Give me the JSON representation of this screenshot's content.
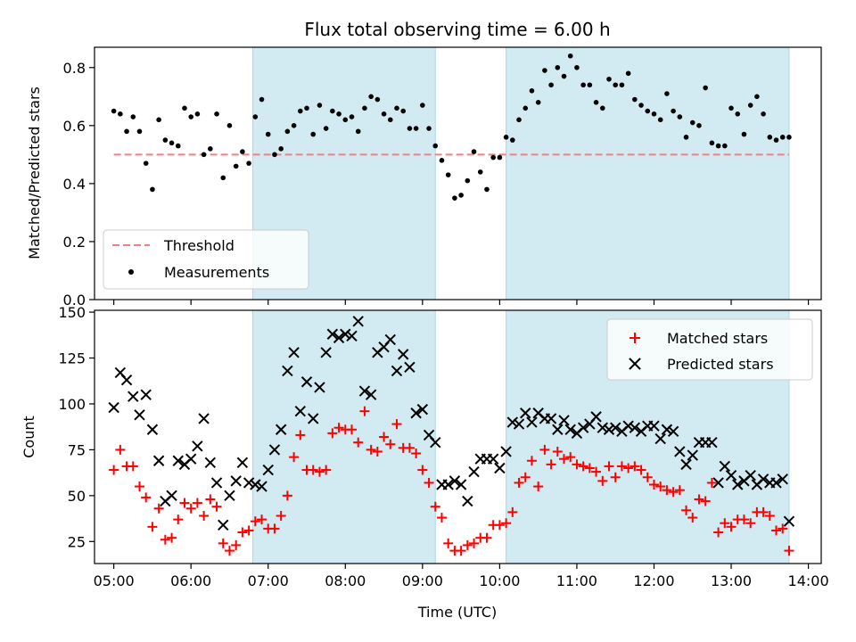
{
  "chart_data": [
    {
      "type": "scatter",
      "title": "Flux total observing time = 6.00 h",
      "xlabel": "",
      "ylabel": "Matched/Predicted stars",
      "x_tick_labels": [
        "05:00",
        "06:00",
        "07:00",
        "08:00",
        "09:00",
        "10:00",
        "11:00",
        "12:00",
        "13:00",
        "14:00"
      ],
      "xlim": [
        "04:45",
        "14:10"
      ],
      "ylim": [
        0,
        0.87
      ],
      "y_ticks": [
        0.0,
        0.2,
        0.4,
        0.6,
        0.8
      ],
      "y_tick_labels": [
        "0.0",
        "0.2",
        "0.4",
        "0.6",
        "0.8"
      ],
      "shaded_intervals": [
        [
          "06:48",
          "09:10"
        ],
        [
          "10:05",
          "13:45"
        ]
      ],
      "shade_color": "#add8e6",
      "legend_position": "lower left",
      "reference_lines": [
        {
          "name": "Threshold",
          "y": 0.5,
          "x_range": [
            "05:00",
            "13:45"
          ],
          "style": "dashed",
          "color": "#f08080"
        }
      ],
      "series": [
        {
          "name": "Measurements",
          "marker": "dot",
          "color": "#000000",
          "x": [
            "05:00",
            "05:05",
            "05:10",
            "05:15",
            "05:20",
            "05:25",
            "05:30",
            "05:35",
            "05:40",
            "05:45",
            "05:50",
            "05:55",
            "06:00",
            "06:05",
            "06:10",
            "06:15",
            "06:20",
            "06:25",
            "06:30",
            "06:35",
            "06:40",
            "06:45",
            "06:50",
            "06:55",
            "07:00",
            "07:05",
            "07:10",
            "07:15",
            "07:20",
            "07:25",
            "07:30",
            "07:35",
            "07:40",
            "07:45",
            "07:50",
            "07:55",
            "08:00",
            "08:05",
            "08:10",
            "08:15",
            "08:20",
            "08:25",
            "08:30",
            "08:35",
            "08:40",
            "08:45",
            "08:50",
            "08:55",
            "09:00",
            "09:05",
            "09:10",
            "09:15",
            "09:20",
            "09:25",
            "09:30",
            "09:35",
            "09:40",
            "09:45",
            "09:50",
            "09:55",
            "10:00",
            "10:05",
            "10:10",
            "10:15",
            "10:20",
            "10:25",
            "10:30",
            "10:35",
            "10:40",
            "10:45",
            "10:50",
            "10:55",
            "11:00",
            "11:05",
            "11:10",
            "11:15",
            "11:20",
            "11:25",
            "11:30",
            "11:35",
            "11:40",
            "11:45",
            "11:50",
            "11:55",
            "12:00",
            "12:05",
            "12:10",
            "12:15",
            "12:20",
            "12:25",
            "12:30",
            "12:35",
            "12:40",
            "12:45",
            "12:50",
            "12:55",
            "13:00",
            "13:05",
            "13:10",
            "13:15",
            "13:20",
            "13:25",
            "13:30",
            "13:35",
            "13:40",
            "13:45"
          ],
          "y": [
            0.65,
            0.64,
            0.58,
            0.63,
            0.58,
            0.47,
            0.38,
            0.62,
            0.55,
            0.54,
            0.53,
            0.66,
            0.63,
            0.64,
            0.5,
            0.52,
            0.64,
            0.42,
            0.6,
            0.46,
            0.51,
            0.47,
            0.63,
            0.69,
            0.57,
            0.5,
            0.52,
            0.58,
            0.6,
            0.65,
            0.66,
            0.57,
            0.67,
            0.59,
            0.65,
            0.64,
            0.62,
            0.63,
            0.58,
            0.66,
            0.7,
            0.69,
            0.64,
            0.62,
            0.66,
            0.65,
            0.59,
            0.59,
            0.67,
            0.59,
            0.53,
            0.48,
            0.43,
            0.35,
            0.36,
            0.41,
            0.51,
            0.44,
            0.38,
            0.49,
            0.49,
            0.56,
            0.55,
            0.62,
            0.66,
            0.72,
            0.68,
            0.79,
            0.74,
            0.8,
            0.77,
            0.84,
            0.8,
            0.74,
            0.74,
            0.68,
            0.66,
            0.76,
            0.74,
            0.74,
            0.78,
            0.69,
            0.67,
            0.65,
            0.64,
            0.62,
            0.71,
            0.65,
            0.63,
            0.56,
            0.61,
            0.6,
            0.73,
            0.54,
            0.53,
            0.53,
            0.66,
            0.64,
            0.57,
            0.67,
            0.7,
            0.64,
            0.56,
            0.55,
            0.56,
            0.56
          ]
        }
      ]
    },
    {
      "type": "scatter",
      "xlabel": "Time (UTC)",
      "ylabel": "Count",
      "x_tick_labels": [
        "05:00",
        "06:00",
        "07:00",
        "08:00",
        "09:00",
        "10:00",
        "11:00",
        "12:00",
        "13:00",
        "14:00"
      ],
      "xlim": [
        "04:45",
        "14:10"
      ],
      "ylim": [
        13,
        151
      ],
      "y_ticks": [
        25,
        50,
        75,
        100,
        125,
        150
      ],
      "y_tick_labels": [
        "25",
        "50",
        "75",
        "100",
        "125",
        "150"
      ],
      "shaded_intervals": [
        [
          "06:48",
          "09:10"
        ],
        [
          "10:05",
          "13:45"
        ]
      ],
      "shade_color": "#add8e6",
      "legend_position": "upper right",
      "series": [
        {
          "name": "Matched stars",
          "marker": "plus",
          "color": "#ff0000",
          "x": [
            "05:00",
            "05:05",
            "05:10",
            "05:15",
            "05:20",
            "05:25",
            "05:30",
            "05:35",
            "05:40",
            "05:45",
            "05:50",
            "05:55",
            "06:00",
            "06:05",
            "06:10",
            "06:15",
            "06:20",
            "06:25",
            "06:30",
            "06:35",
            "06:40",
            "06:45",
            "06:50",
            "06:55",
            "07:00",
            "07:05",
            "07:10",
            "07:15",
            "07:20",
            "07:25",
            "07:30",
            "07:35",
            "07:40",
            "07:45",
            "07:50",
            "07:55",
            "08:00",
            "08:05",
            "08:10",
            "08:15",
            "08:20",
            "08:25",
            "08:30",
            "08:35",
            "08:40",
            "08:45",
            "08:50",
            "08:55",
            "09:00",
            "09:05",
            "09:10",
            "09:15",
            "09:20",
            "09:25",
            "09:30",
            "09:35",
            "09:40",
            "09:45",
            "09:50",
            "09:55",
            "10:00",
            "10:05",
            "10:10",
            "10:15",
            "10:20",
            "10:25",
            "10:30",
            "10:35",
            "10:40",
            "10:45",
            "10:50",
            "10:55",
            "11:00",
            "11:05",
            "11:10",
            "11:15",
            "11:20",
            "11:25",
            "11:30",
            "11:35",
            "11:40",
            "11:45",
            "11:50",
            "11:55",
            "12:00",
            "12:05",
            "12:10",
            "12:15",
            "12:20",
            "12:25",
            "12:30",
            "12:35",
            "12:40",
            "12:45",
            "12:50",
            "12:55",
            "13:00",
            "13:05",
            "13:10",
            "13:15",
            "13:20",
            "13:25",
            "13:30",
            "13:35",
            "13:40",
            "13:45"
          ],
          "y": [
            64,
            75,
            66,
            66,
            55,
            49,
            33,
            43,
            26,
            27,
            37,
            46,
            43,
            46,
            39,
            48,
            44,
            24,
            20,
            23,
            30,
            31,
            36,
            37,
            32,
            32,
            39,
            50,
            71,
            83,
            64,
            64,
            63,
            64,
            84,
            87,
            86,
            86,
            79,
            96,
            75,
            74,
            82,
            78,
            89,
            76,
            76,
            73,
            64,
            57,
            44,
            38,
            24,
            20,
            20,
            23,
            24,
            27,
            27,
            34,
            34,
            35,
            41,
            57,
            60,
            69,
            55,
            75,
            67,
            74,
            70,
            71,
            67,
            66,
            65,
            63,
            58,
            66,
            60,
            66,
            65,
            66,
            64,
            60,
            56,
            55,
            53,
            52,
            53,
            42,
            38,
            48,
            47,
            57,
            30,
            35,
            33,
            37,
            37,
            35,
            41,
            41,
            39,
            31,
            32,
            20
          ]
        },
        {
          "name": "Predicted stars",
          "marker": "x",
          "color": "#000000",
          "x": [
            "05:00",
            "05:05",
            "05:10",
            "05:15",
            "05:20",
            "05:25",
            "05:30",
            "05:35",
            "05:40",
            "05:45",
            "05:50",
            "05:55",
            "06:00",
            "06:05",
            "06:10",
            "06:15",
            "06:20",
            "06:25",
            "06:30",
            "06:35",
            "06:40",
            "06:45",
            "06:50",
            "06:55",
            "07:00",
            "07:05",
            "07:10",
            "07:15",
            "07:20",
            "07:25",
            "07:30",
            "07:35",
            "07:40",
            "07:45",
            "07:50",
            "07:55",
            "08:00",
            "08:05",
            "08:10",
            "08:15",
            "08:20",
            "08:25",
            "08:30",
            "08:35",
            "08:40",
            "08:45",
            "08:50",
            "08:55",
            "09:00",
            "09:05",
            "09:10",
            "09:15",
            "09:20",
            "09:25",
            "09:30",
            "09:35",
            "09:40",
            "09:45",
            "09:50",
            "09:55",
            "10:00",
            "10:05",
            "10:10",
            "10:15",
            "10:20",
            "10:25",
            "10:30",
            "10:35",
            "10:40",
            "10:45",
            "10:50",
            "10:55",
            "11:00",
            "11:05",
            "11:10",
            "11:15",
            "11:20",
            "11:25",
            "11:30",
            "11:35",
            "11:40",
            "11:45",
            "11:50",
            "11:55",
            "12:00",
            "12:05",
            "12:10",
            "12:15",
            "12:20",
            "12:25",
            "12:30",
            "12:35",
            "12:40",
            "12:45",
            "12:50",
            "12:55",
            "13:00",
            "13:05",
            "13:10",
            "13:15",
            "13:20",
            "13:25",
            "13:30",
            "13:35",
            "13:40",
            "13:45"
          ],
          "y": [
            98,
            117,
            113,
            104,
            94,
            105,
            86,
            69,
            47,
            50,
            69,
            67,
            70,
            77,
            92,
            68,
            57,
            34,
            50,
            58,
            68,
            57,
            56,
            55,
            64,
            75,
            86,
            118,
            128,
            96,
            112,
            92,
            109,
            128,
            138,
            136,
            138,
            137,
            145,
            107,
            105,
            128,
            131,
            135,
            118,
            127,
            120,
            95,
            97,
            83,
            79,
            56,
            56,
            58,
            56,
            47,
            63,
            70,
            70,
            70,
            65,
            74,
            90,
            89,
            95,
            90,
            95,
            92,
            92,
            86,
            91,
            86,
            84,
            87,
            89,
            93,
            87,
            86,
            87,
            85,
            88,
            87,
            85,
            88,
            88,
            81,
            86,
            85,
            74,
            67,
            72,
            79,
            79,
            79,
            57,
            66,
            61,
            56,
            58,
            61,
            56,
            59,
            57,
            57,
            59,
            36
          ]
        }
      ]
    }
  ]
}
